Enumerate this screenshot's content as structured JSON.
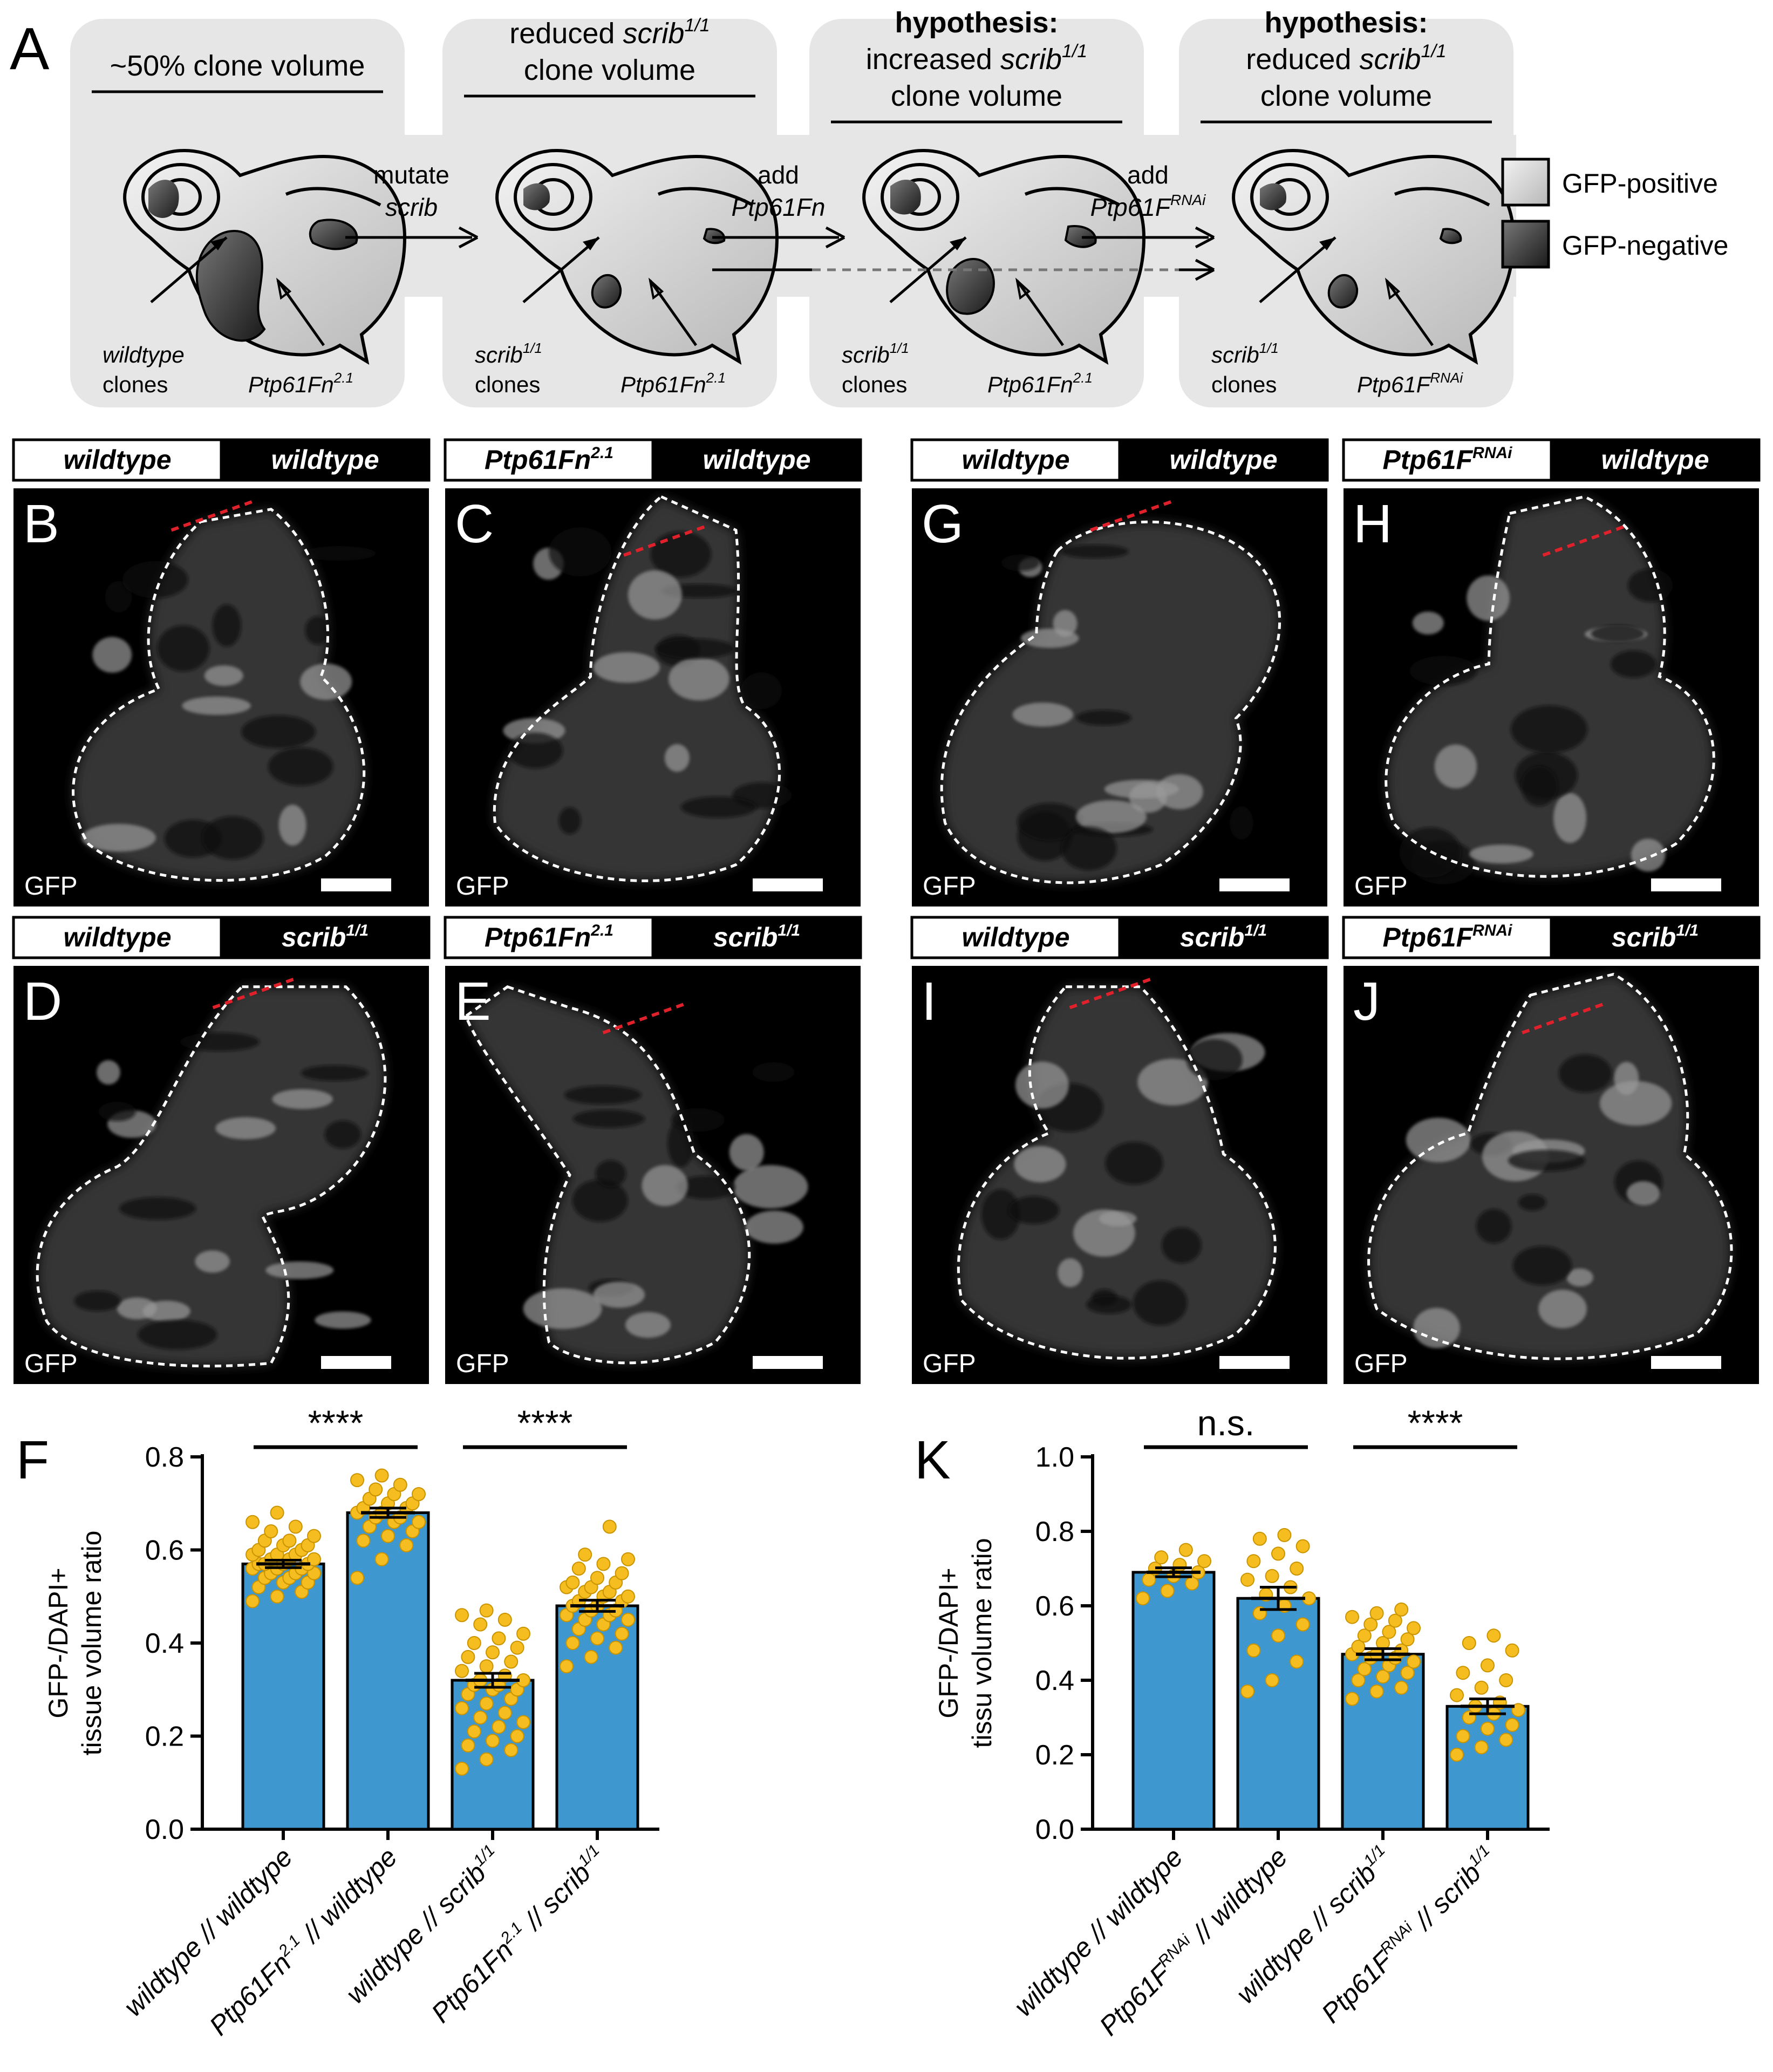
{
  "panel_letters": [
    "A",
    "B",
    "C",
    "D",
    "E",
    "F",
    "G",
    "H",
    "I",
    "J",
    "K"
  ],
  "schematic": {
    "boxes": [
      {
        "title_lines": [
          "~50% clone volume"
        ],
        "label_clone_1": "wildtype",
        "label_clone_2": "clones",
        "label_ptp": "Ptp61Fn",
        "label_ptp_sup": "2.1"
      },
      {
        "title_lines": [
          "reduced scrib",
          "clone volume"
        ],
        "title_sup": "1/1",
        "label_clone_1": "scrib",
        "label_clone_sup": "1/1",
        "label_clone_2": "clones",
        "label_ptp": "Ptp61Fn",
        "label_ptp_sup": "2.1"
      },
      {
        "title_lines": [
          "hypothesis:",
          "increased scrib",
          "clone volume"
        ],
        "title_sup": "1/1",
        "label_clone_1": "scrib",
        "label_clone_sup": "1/1",
        "label_clone_2": "clones",
        "label_ptp": "Ptp61Fn",
        "label_ptp_sup": "2.1"
      },
      {
        "title_lines": [
          "hypothesis:",
          "reduced scrib",
          "clone volume"
        ],
        "title_sup": "1/1",
        "label_clone_1": "scrib",
        "label_clone_sup": "1/1",
        "label_clone_2": "clones",
        "label_ptp": "Ptp61F",
        "label_ptp_sup": "RNAi"
      }
    ],
    "arrows": [
      {
        "line1": "mutate",
        "line2": "scrib"
      },
      {
        "line1": "add",
        "line2": "Ptp61Fn"
      },
      {
        "line1": "add",
        "line2": "Ptp61F",
        "line2_sup": "RNAi"
      }
    ],
    "legend": [
      {
        "label": "GFP-positive",
        "color": "#e0e0e0"
      },
      {
        "label": "GFP-negative",
        "color": "#3a3a3a"
      }
    ]
  },
  "micrographs": [
    {
      "letter": "B",
      "left": "wildtype",
      "right": "wildtype",
      "channel": "GFP"
    },
    {
      "letter": "C",
      "left": "Ptp61Fn",
      "left_sup": "2.1",
      "right": "wildtype",
      "channel": "GFP"
    },
    {
      "letter": "D",
      "left": "wildtype",
      "right": "scrib",
      "right_sup": "1/1",
      "channel": "GFP"
    },
    {
      "letter": "E",
      "left": "Ptp61Fn",
      "left_sup": "2.1",
      "right": "scrib",
      "right_sup": "1/1",
      "channel": "GFP"
    },
    {
      "letter": "G",
      "left": "wildtype",
      "right": "wildtype",
      "channel": "GFP"
    },
    {
      "letter": "H",
      "left": "Ptp61F",
      "left_sup": "RNAi",
      "right": "wildtype",
      "channel": "GFP"
    },
    {
      "letter": "I",
      "left": "wildtype",
      "right": "scrib",
      "right_sup": "1/1",
      "channel": "GFP"
    },
    {
      "letter": "J",
      "left": "Ptp61F",
      "left_sup": "RNAi",
      "right": "scrib",
      "right_sup": "1/1",
      "channel": "GFP"
    }
  ],
  "chart_data": [
    {
      "panel": "F",
      "type": "bar",
      "ylabel_lines": [
        "GFP-/DAPI+",
        "tissue volume ratio"
      ],
      "ylim": [
        0,
        0.8
      ],
      "yticks": [
        "0.0",
        "0.2",
        "0.4",
        "0.6",
        "0.8"
      ],
      "categories": [
        {
          "main": "wildtype // wildtype"
        },
        {
          "main": "Ptp61Fn",
          "sup": "2.1",
          "rest": " // wildtype"
        },
        {
          "main": "wildtype // scrib",
          "sup": "1/1"
        },
        {
          "main": "Ptp61Fn",
          "sup": "2.1",
          "rest": " // scrib",
          "sup2": "1/1"
        }
      ],
      "values": [
        0.57,
        0.68,
        0.32,
        0.48
      ],
      "sem": [
        0.008,
        0.01,
        0.015,
        0.012
      ],
      "points": [
        [
          0.49,
          0.5,
          0.51,
          0.52,
          0.53,
          0.53,
          0.54,
          0.54,
          0.55,
          0.55,
          0.55,
          0.56,
          0.56,
          0.56,
          0.57,
          0.57,
          0.57,
          0.57,
          0.58,
          0.58,
          0.58,
          0.59,
          0.59,
          0.59,
          0.6,
          0.6,
          0.61,
          0.61,
          0.62,
          0.62,
          0.63,
          0.64,
          0.65,
          0.66,
          0.68
        ],
        [
          0.54,
          0.58,
          0.61,
          0.62,
          0.63,
          0.64,
          0.65,
          0.66,
          0.66,
          0.67,
          0.67,
          0.68,
          0.68,
          0.69,
          0.69,
          0.7,
          0.7,
          0.71,
          0.72,
          0.72,
          0.73,
          0.74,
          0.75,
          0.76
        ],
        [
          0.13,
          0.15,
          0.17,
          0.18,
          0.19,
          0.2,
          0.21,
          0.22,
          0.23,
          0.24,
          0.25,
          0.26,
          0.27,
          0.28,
          0.29,
          0.3,
          0.3,
          0.31,
          0.31,
          0.32,
          0.32,
          0.33,
          0.34,
          0.35,
          0.36,
          0.37,
          0.38,
          0.39,
          0.4,
          0.41,
          0.42,
          0.44,
          0.45,
          0.46,
          0.47
        ],
        [
          0.35,
          0.37,
          0.39,
          0.4,
          0.41,
          0.42,
          0.43,
          0.44,
          0.45,
          0.45,
          0.46,
          0.46,
          0.47,
          0.47,
          0.48,
          0.48,
          0.49,
          0.49,
          0.5,
          0.5,
          0.51,
          0.51,
          0.52,
          0.52,
          0.53,
          0.53,
          0.54,
          0.55,
          0.56,
          0.57,
          0.58,
          0.59,
          0.65
        ]
      ],
      "significance": [
        {
          "pair": [
            0,
            1
          ],
          "label": "****"
        },
        {
          "pair": [
            2,
            3
          ],
          "label": "****"
        }
      ],
      "bar_color": "#3f97d0",
      "point_color": "#f5bd1f"
    },
    {
      "panel": "K",
      "type": "bar",
      "ylabel_lines": [
        "GFP-/DAPI+",
        "tissu volume ratio"
      ],
      "ylim": [
        0,
        1.0
      ],
      "yticks": [
        "0.0",
        "0.2",
        "0.4",
        "0.6",
        "0.8",
        "1.0"
      ],
      "categories": [
        {
          "main": "wildtype // wildtype"
        },
        {
          "main": "Ptp61F",
          "sup": "RNAi",
          "rest": " // wildtype"
        },
        {
          "main": "wildtype // scrib",
          "sup": "1/1"
        },
        {
          "main": "Ptp61F",
          "sup": "RNAi",
          "rest": " // scrib",
          "sup2": "1/1"
        }
      ],
      "values": [
        0.69,
        0.62,
        0.47,
        0.33
      ],
      "sem": [
        0.012,
        0.03,
        0.015,
        0.02
      ],
      "points": [
        [
          0.62,
          0.64,
          0.66,
          0.67,
          0.68,
          0.69,
          0.7,
          0.71,
          0.72,
          0.73,
          0.75
        ],
        [
          0.37,
          0.4,
          0.45,
          0.48,
          0.52,
          0.55,
          0.58,
          0.6,
          0.62,
          0.63,
          0.65,
          0.67,
          0.68,
          0.7,
          0.72,
          0.74,
          0.76,
          0.78,
          0.79
        ],
        [
          0.35,
          0.37,
          0.38,
          0.4,
          0.41,
          0.42,
          0.43,
          0.44,
          0.45,
          0.46,
          0.46,
          0.47,
          0.47,
          0.48,
          0.49,
          0.5,
          0.51,
          0.52,
          0.53,
          0.54,
          0.55,
          0.56,
          0.57,
          0.58,
          0.59
        ],
        [
          0.2,
          0.22,
          0.24,
          0.25,
          0.27,
          0.28,
          0.3,
          0.31,
          0.32,
          0.33,
          0.34,
          0.36,
          0.38,
          0.4,
          0.42,
          0.44,
          0.48,
          0.5,
          0.52
        ]
      ],
      "significance": [
        {
          "pair": [
            0,
            1
          ],
          "label": "n.s."
        },
        {
          "pair": [
            2,
            3
          ],
          "label": "****"
        }
      ],
      "bar_color": "#3f97d0",
      "point_color": "#f5bd1f"
    }
  ]
}
